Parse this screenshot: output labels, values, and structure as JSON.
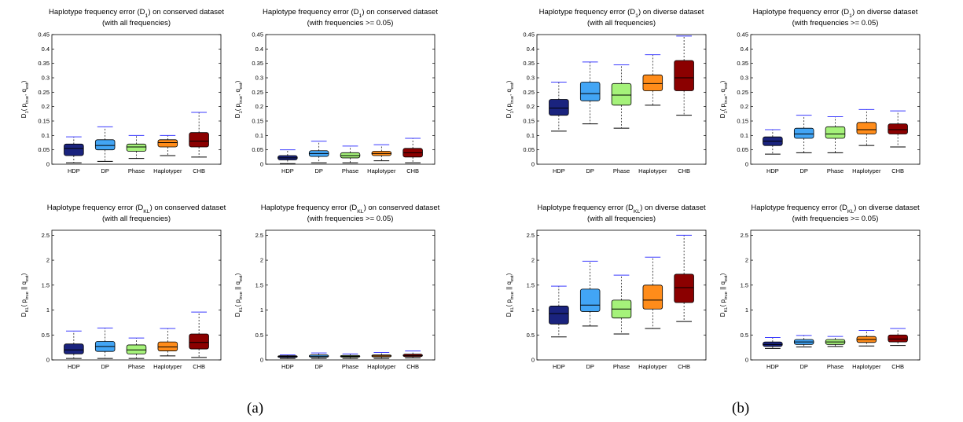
{
  "captions": [
    "(a)",
    "(b)"
  ],
  "colors": {
    "HDP": "#1a237e",
    "DP": "#42a5f5",
    "Phase": "#a5f27a",
    "Haplotyper": "#ff8c1a",
    "CHB": "#8b0000",
    "whisker_cap": "#3b3bff"
  },
  "chart_data": [
    {
      "type": "box",
      "title_main": "Haplotype frequency error (D",
      "title_sub": "1",
      "title_rest": ") on conserved dataset",
      "subtitle": "(with all frequencies)",
      "ylabel_main": "D",
      "ylabel_sub": "1",
      "ylabel_rest": "( p",
      "ylabel_sub2": "true",
      "ylabel_rest2": ", q",
      "ylabel_sub3": "est",
      "ylabel_end": ")",
      "ylim": [
        0,
        0.45
      ],
      "yticks": [
        0,
        0.05,
        0.1,
        0.15,
        0.2,
        0.25,
        0.3,
        0.35,
        0.4,
        0.45
      ],
      "ytick_labels": [
        "0",
        "0.05",
        "0.1",
        "0.15",
        "0.2",
        "0.25",
        "0.3",
        "0.35",
        "0.4",
        "0.45"
      ],
      "categories": [
        "HDP",
        "DP",
        "Phase",
        "Haplotyper",
        "CHB"
      ],
      "boxes": [
        {
          "min": 0.005,
          "q1": 0.03,
          "median": 0.055,
          "q3": 0.07,
          "max": 0.095
        },
        {
          "min": 0.01,
          "q1": 0.05,
          "median": 0.065,
          "q3": 0.085,
          "max": 0.13
        },
        {
          "min": 0.02,
          "q1": 0.045,
          "median": 0.06,
          "q3": 0.07,
          "max": 0.1
        },
        {
          "min": 0.03,
          "q1": 0.06,
          "median": 0.075,
          "q3": 0.085,
          "max": 0.1
        },
        {
          "min": 0.025,
          "q1": 0.06,
          "median": 0.08,
          "q3": 0.11,
          "max": 0.18
        }
      ]
    },
    {
      "type": "box",
      "title_main": "Haplotype frequency error (D",
      "title_sub": "1",
      "title_rest": ") on conserved dataset",
      "subtitle": "(with frequencies >= 0.05)",
      "ylabel_main": "D",
      "ylabel_sub": "1",
      "ylabel_rest": "( p",
      "ylabel_sub2": "true",
      "ylabel_rest2": ", q",
      "ylabel_sub3": "est",
      "ylabel_end": ")",
      "ylim": [
        0,
        0.45
      ],
      "yticks": [
        0,
        0.05,
        0.1,
        0.15,
        0.2,
        0.25,
        0.3,
        0.35,
        0.4,
        0.45
      ],
      "ytick_labels": [
        "0",
        "0.05",
        "0.1",
        "0.15",
        "0.2",
        "0.25",
        "0.3",
        "0.35",
        "0.4",
        "0.45"
      ],
      "categories": [
        "HDP",
        "DP",
        "Phase",
        "Haplotyper",
        "CHB"
      ],
      "boxes": [
        {
          "min": 0.002,
          "q1": 0.015,
          "median": 0.022,
          "q3": 0.03,
          "max": 0.05
        },
        {
          "min": 0.005,
          "q1": 0.027,
          "median": 0.037,
          "q3": 0.047,
          "max": 0.08
        },
        {
          "min": 0.005,
          "q1": 0.022,
          "median": 0.03,
          "q3": 0.04,
          "max": 0.063
        },
        {
          "min": 0.012,
          "q1": 0.03,
          "median": 0.037,
          "q3": 0.045,
          "max": 0.068
        },
        {
          "min": 0.005,
          "q1": 0.025,
          "median": 0.04,
          "q3": 0.055,
          "max": 0.09
        }
      ]
    },
    {
      "type": "box",
      "title_main": "Haplotype frequency error (D",
      "title_sub": "1",
      "title_rest": ") on diverse dataset",
      "subtitle": "(with all frequencies)",
      "ylabel_main": "D",
      "ylabel_sub": "1",
      "ylabel_rest": "( p",
      "ylabel_sub2": "true",
      "ylabel_rest2": ", q",
      "ylabel_sub3": "est",
      "ylabel_end": ")",
      "ylim": [
        0,
        0.45
      ],
      "yticks": [
        0,
        0.05,
        0.1,
        0.15,
        0.2,
        0.25,
        0.3,
        0.35,
        0.4,
        0.45
      ],
      "ytick_labels": [
        "0",
        "0.05",
        "0.1",
        "0.15",
        "0.2",
        "0.25",
        "0.3",
        "0.35",
        "0.4",
        "0.45"
      ],
      "categories": [
        "HDP",
        "DP",
        "Phase",
        "Haplotyper",
        "CHB"
      ],
      "boxes": [
        {
          "min": 0.115,
          "q1": 0.17,
          "median": 0.195,
          "q3": 0.225,
          "max": 0.285
        },
        {
          "min": 0.14,
          "q1": 0.22,
          "median": 0.245,
          "q3": 0.285,
          "max": 0.355
        },
        {
          "min": 0.125,
          "q1": 0.205,
          "median": 0.24,
          "q3": 0.28,
          "max": 0.345
        },
        {
          "min": 0.205,
          "q1": 0.255,
          "median": 0.28,
          "q3": 0.31,
          "max": 0.38
        },
        {
          "min": 0.17,
          "q1": 0.255,
          "median": 0.3,
          "q3": 0.36,
          "max": 0.445
        }
      ]
    },
    {
      "type": "box",
      "title_main": "Haplotype frequency error (D",
      "title_sub": "1",
      "title_rest": ") on diverse dataset",
      "subtitle": "(with frequencies >= 0.05)",
      "ylabel_main": "D",
      "ylabel_sub": "1",
      "ylabel_rest": "( p",
      "ylabel_sub2": "true",
      "ylabel_rest2": ", q",
      "ylabel_sub3": "est",
      "ylabel_end": ")",
      "ylim": [
        0,
        0.45
      ],
      "yticks": [
        0,
        0.05,
        0.1,
        0.15,
        0.2,
        0.25,
        0.3,
        0.35,
        0.4,
        0.45
      ],
      "ytick_labels": [
        "0",
        "0.05",
        "0.1",
        "0.15",
        "0.2",
        "0.25",
        "0.3",
        "0.35",
        "0.4",
        "0.45"
      ],
      "categories": [
        "HDP",
        "DP",
        "Phase",
        "Haplotyper",
        "CHB"
      ],
      "boxes": [
        {
          "min": 0.035,
          "q1": 0.065,
          "median": 0.08,
          "q3": 0.095,
          "max": 0.12
        },
        {
          "min": 0.04,
          "q1": 0.09,
          "median": 0.105,
          "q3": 0.125,
          "max": 0.17
        },
        {
          "min": 0.04,
          "q1": 0.09,
          "median": 0.105,
          "q3": 0.13,
          "max": 0.165
        },
        {
          "min": 0.065,
          "q1": 0.105,
          "median": 0.12,
          "q3": 0.145,
          "max": 0.19
        },
        {
          "min": 0.06,
          "q1": 0.105,
          "median": 0.12,
          "q3": 0.14,
          "max": 0.185
        }
      ]
    },
    {
      "type": "box",
      "title_main": "Haplotype frequency error (D",
      "title_sub": "KL",
      "title_rest": ") on conserved dataset",
      "subtitle": "(with all frequencies)",
      "ylabel_main": "D",
      "ylabel_sub": "KL",
      "ylabel_rest": "( p",
      "ylabel_sub2": "true",
      "ylabel_rest2": " || q",
      "ylabel_sub3": "est",
      "ylabel_end": ")",
      "ylim": [
        0,
        2.6
      ],
      "yticks": [
        0,
        0.5,
        1,
        1.5,
        2,
        2.5
      ],
      "ytick_labels": [
        "0",
        "0.5",
        "1",
        "1.5",
        "2",
        "2.5"
      ],
      "categories": [
        "HDP",
        "DP",
        "Phase",
        "Haplotyper",
        "CHB"
      ],
      "boxes": [
        {
          "min": 0.03,
          "q1": 0.12,
          "median": 0.2,
          "q3": 0.32,
          "max": 0.58
        },
        {
          "min": 0.03,
          "q1": 0.17,
          "median": 0.27,
          "q3": 0.37,
          "max": 0.64
        },
        {
          "min": 0.03,
          "q1": 0.12,
          "median": 0.2,
          "q3": 0.3,
          "max": 0.44
        },
        {
          "min": 0.08,
          "q1": 0.18,
          "median": 0.26,
          "q3": 0.36,
          "max": 0.63
        },
        {
          "min": 0.05,
          "q1": 0.22,
          "median": 0.35,
          "q3": 0.52,
          "max": 0.96
        }
      ]
    },
    {
      "type": "box",
      "title_main": "Haplotype frequency error (D",
      "title_sub": "KL",
      "title_rest": ") on conserved dataset",
      "subtitle": "(with frequencies >= 0.05)",
      "ylabel_main": "D",
      "ylabel_sub": "KL",
      "ylabel_rest": "( p",
      "ylabel_sub2": "true",
      "ylabel_rest2": " || q",
      "ylabel_sub3": "est",
      "ylabel_end": ")",
      "ylim": [
        0,
        2.6
      ],
      "yticks": [
        0,
        0.5,
        1,
        1.5,
        2,
        2.5
      ],
      "ytick_labels": [
        "0",
        "0.5",
        "1",
        "1.5",
        "2",
        "2.5"
      ],
      "categories": [
        "HDP",
        "DP",
        "Phase",
        "Haplotyper",
        "CHB"
      ],
      "boxes": [
        {
          "min": 0.03,
          "q1": 0.05,
          "median": 0.07,
          "q3": 0.085,
          "max": 0.1
        },
        {
          "min": 0.03,
          "q1": 0.055,
          "median": 0.075,
          "q3": 0.1,
          "max": 0.14
        },
        {
          "min": 0.03,
          "q1": 0.055,
          "median": 0.07,
          "q3": 0.09,
          "max": 0.12
        },
        {
          "min": 0.03,
          "q1": 0.06,
          "median": 0.08,
          "q3": 0.1,
          "max": 0.15
        },
        {
          "min": 0.04,
          "q1": 0.065,
          "median": 0.085,
          "q3": 0.115,
          "max": 0.18
        }
      ]
    },
    {
      "type": "box",
      "title_main": "Haplotype frequency error (D",
      "title_sub": "KL",
      "title_rest": ") on diverse dataset",
      "subtitle": "(with all frequencies)",
      "ylabel_main": "D",
      "ylabel_sub": "KL",
      "ylabel_rest": "( p",
      "ylabel_sub2": "true",
      "ylabel_rest2": " || q",
      "ylabel_sub3": "est",
      "ylabel_end": ")",
      "ylim": [
        0,
        2.6
      ],
      "yticks": [
        0,
        0.5,
        1,
        1.5,
        2,
        2.5
      ],
      "ytick_labels": [
        "0",
        "0.5",
        "1",
        "1.5",
        "2",
        "2.5"
      ],
      "categories": [
        "HDP",
        "DP",
        "Phase",
        "Haplotyper",
        "CHB"
      ],
      "boxes": [
        {
          "min": 0.46,
          "q1": 0.72,
          "median": 0.93,
          "q3": 1.08,
          "max": 1.48
        },
        {
          "min": 0.68,
          "q1": 0.97,
          "median": 1.1,
          "q3": 1.42,
          "max": 1.98
        },
        {
          "min": 0.52,
          "q1": 0.84,
          "median": 1.02,
          "q3": 1.2,
          "max": 1.7
        },
        {
          "min": 0.63,
          "q1": 1.02,
          "median": 1.2,
          "q3": 1.5,
          "max": 2.06
        },
        {
          "min": 0.77,
          "q1": 1.15,
          "median": 1.45,
          "q3": 1.72,
          "max": 2.5
        }
      ]
    },
    {
      "type": "box",
      "title_main": "Haplotype frequency error (D",
      "title_sub": "KL",
      "title_rest": ") on diverse dataset",
      "subtitle": "(with frequencies >= 0.05)",
      "ylabel_main": "D",
      "ylabel_sub": "KL",
      "ylabel_rest": "( p",
      "ylabel_sub2": "true",
      "ylabel_rest2": " || q",
      "ylabel_sub3": "est",
      "ylabel_end": ")",
      "ylim": [
        0,
        2.6
      ],
      "yticks": [
        0,
        0.5,
        1,
        1.5,
        2,
        2.5
      ],
      "ytick_labels": [
        "0",
        "0.5",
        "1",
        "1.5",
        "2",
        "2.5"
      ],
      "categories": [
        "HDP",
        "DP",
        "Phase",
        "Haplotyper",
        "CHB"
      ],
      "boxes": [
        {
          "min": 0.23,
          "q1": 0.27,
          "median": 0.31,
          "q3": 0.36,
          "max": 0.45
        },
        {
          "min": 0.26,
          "q1": 0.31,
          "median": 0.36,
          "q3": 0.41,
          "max": 0.49
        },
        {
          "min": 0.27,
          "q1": 0.31,
          "median": 0.36,
          "q3": 0.41,
          "max": 0.47
        },
        {
          "min": 0.28,
          "q1": 0.35,
          "median": 0.41,
          "q3": 0.47,
          "max": 0.59
        },
        {
          "min": 0.29,
          "q1": 0.36,
          "median": 0.42,
          "q3": 0.5,
          "max": 0.63
        }
      ]
    }
  ]
}
